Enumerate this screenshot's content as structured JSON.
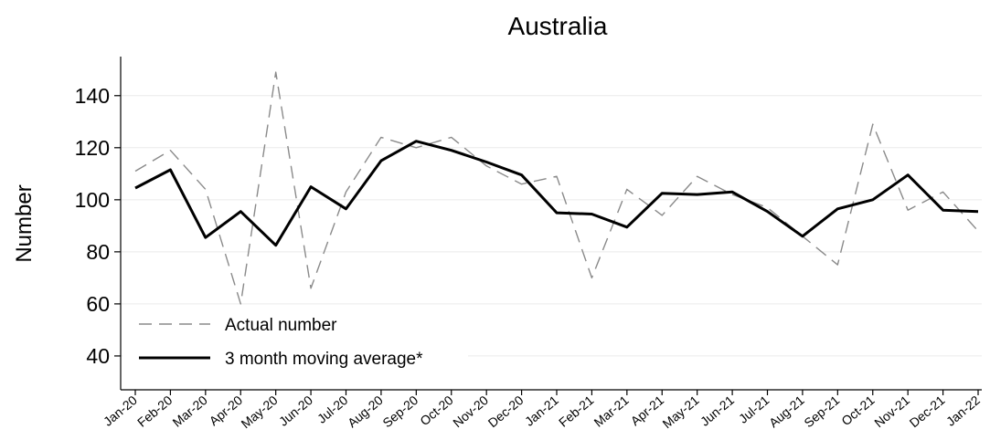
{
  "chart_data": {
    "type": "line",
    "title": "Australia",
    "xlabel": "",
    "ylabel": "Number",
    "ylim": [
      27,
      155
    ],
    "yticks": [
      40,
      60,
      80,
      100,
      120,
      140
    ],
    "grid": true,
    "legend_position": "bottom-left",
    "categories": [
      "Jan-20",
      "Feb-20",
      "Mar-20",
      "Apr-20",
      "May-20",
      "Jun-20",
      "Jul-20",
      "Aug-20",
      "Sep-20",
      "Oct-20",
      "Nov-20",
      "Dec-20",
      "Jan-21",
      "Feb-21",
      "Mar-21",
      "Apr-21",
      "May-21",
      "Jun-21",
      "Jul-21",
      "Aug-21",
      "Sep-21",
      "Oct-21",
      "Nov-21",
      "Dec-21",
      "Jan-22"
    ],
    "series": [
      {
        "name": "Actual number",
        "style": "dashed",
        "color": "#8a8a8a",
        "values": [
          111,
          119,
          104,
          60,
          149,
          66,
          103,
          124,
          120,
          124,
          113,
          106,
          109,
          70,
          104,
          94,
          109,
          102,
          97,
          86,
          75,
          129,
          96,
          103,
          88
        ]
      },
      {
        "name": "3 month moving average*",
        "style": "solid",
        "color": "#000000",
        "values": [
          104.5,
          111.5,
          85.5,
          95.5,
          82.5,
          105,
          96.5,
          115,
          122.5,
          119,
          114.5,
          109.5,
          95,
          94.5,
          89.5,
          102.5,
          102,
          103,
          95.5,
          86,
          96.5,
          100,
          109.5,
          96,
          95.5
        ]
      }
    ]
  }
}
